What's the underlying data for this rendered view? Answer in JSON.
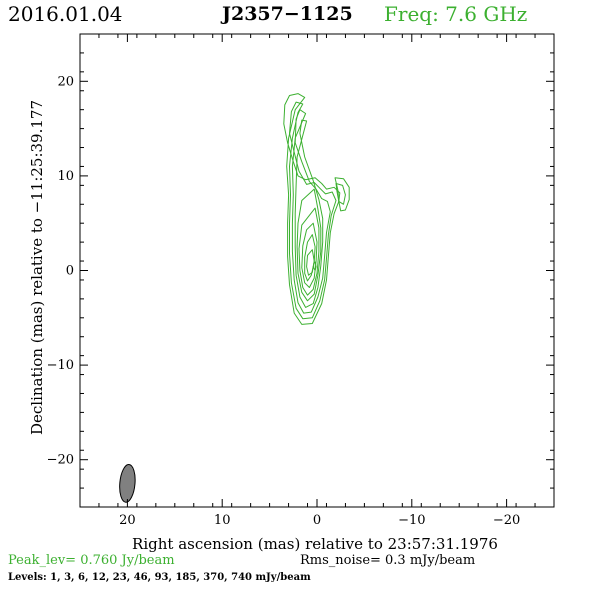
{
  "header": {
    "date": "2016.01.04",
    "source": "J2357−1125",
    "freq": "Freq: 7.6 GHz"
  },
  "colors": {
    "contour": "#3cb030",
    "beam_fill": "#808080",
    "peak_text": "#3cb030",
    "freq_text": "#3cb030"
  },
  "axes": {
    "xlabel": "Right ascension (mas) relative to 23:57:31.1976",
    "ylabel": "Declination (mas) relative to −11:25:39.177",
    "x_range": [
      25,
      -25
    ],
    "y_range": [
      -25,
      25
    ],
    "x_ticks": [
      {
        "value": 20,
        "label": "20"
      },
      {
        "value": 10,
        "label": "10"
      },
      {
        "value": 0,
        "label": "0"
      },
      {
        "value": -10,
        "label": "−10"
      },
      {
        "value": -20,
        "label": "−20"
      }
    ],
    "y_ticks": [
      {
        "value": 20,
        "label": "20"
      },
      {
        "value": 10,
        "label": "10"
      },
      {
        "value": 0,
        "label": "0"
      },
      {
        "value": -10,
        "label": "−10"
      },
      {
        "value": -20,
        "label": "−20"
      }
    ]
  },
  "footer": {
    "peak": "Peak_lev=  0.760 Jy/beam",
    "noise": "Rms_noise=  0.3 mJy/beam",
    "levels": "Levels:   1,   3,   6,  12,  23,  46,  93, 185, 370, 740 mJy/beam"
  },
  "beam": {
    "x": 20,
    "y": -22.5,
    "major": 4.0,
    "minor": 1.6,
    "pa_deg": 5
  },
  "contours": [
    {
      "level": 1,
      "points": [
        [
          1.3,
          18.3
        ],
        [
          2.0,
          18.7
        ],
        [
          2.9,
          18.5
        ],
        [
          3.4,
          17.5
        ],
        [
          3.5,
          15.5
        ],
        [
          3.1,
          13.5
        ],
        [
          2.5,
          11.5
        ],
        [
          2.0,
          10.0
        ],
        [
          1.2,
          9.6
        ],
        [
          0.2,
          9.8
        ],
        [
          -0.5,
          9.2
        ],
        [
          -1.0,
          8.6
        ],
        [
          -1.8,
          8.8
        ],
        [
          -2.4,
          8.2
        ],
        [
          -2.3,
          7.3
        ],
        [
          -1.8,
          6.0
        ],
        [
          -1.4,
          4.0
        ],
        [
          -1.2,
          1.5
        ],
        [
          -1.0,
          -1.0
        ],
        [
          -0.5,
          -3.5
        ],
        [
          0.5,
          -5.6
        ],
        [
          1.6,
          -5.7
        ],
        [
          2.4,
          -4.5
        ],
        [
          2.9,
          -1.5
        ],
        [
          3.1,
          1.5
        ],
        [
          3.1,
          5.0
        ],
        [
          3.0,
          8.0
        ],
        [
          3.2,
          11.0
        ],
        [
          3.0,
          14.0
        ],
        [
          2.3,
          17.0
        ],
        [
          1.3,
          18.3
        ]
      ]
    },
    {
      "level": 3,
      "points": [
        [
          1.5,
          17.6
        ],
        [
          2.2,
          17.8
        ],
        [
          2.7,
          16.8
        ],
        [
          2.9,
          14.5
        ],
        [
          2.4,
          12.5
        ],
        [
          1.9,
          10.5
        ],
        [
          1.1,
          9.1
        ],
        [
          0.3,
          9.3
        ],
        [
          -0.3,
          8.7
        ],
        [
          -0.9,
          8.1
        ],
        [
          -1.6,
          8.3
        ],
        [
          -2.0,
          7.4
        ],
        [
          -1.5,
          5.8
        ],
        [
          -1.2,
          3.8
        ],
        [
          -1.0,
          1.3
        ],
        [
          -0.8,
          -1.0
        ],
        [
          -0.3,
          -3.2
        ],
        [
          0.5,
          -5.0
        ],
        [
          1.5,
          -5.1
        ],
        [
          2.2,
          -4.0
        ],
        [
          2.7,
          -1.3
        ],
        [
          2.9,
          1.8
        ],
        [
          2.9,
          5.0
        ],
        [
          2.8,
          8.0
        ],
        [
          2.9,
          11.0
        ],
        [
          2.6,
          14.0
        ],
        [
          2.0,
          16.7
        ],
        [
          1.5,
          17.6
        ]
      ]
    },
    {
      "level": 6,
      "points": [
        [
          1.2,
          16.6
        ],
        [
          1.8,
          17.0
        ],
        [
          2.2,
          16.0
        ],
        [
          2.3,
          13.5
        ],
        [
          1.6,
          11.5
        ],
        [
          0.8,
          9.4
        ],
        [
          0.1,
          8.6
        ],
        [
          -0.5,
          7.6
        ],
        [
          -1.1,
          7.3
        ],
        [
          -1.4,
          6.2
        ],
        [
          -1.0,
          4.0
        ],
        [
          -0.8,
          1.5
        ],
        [
          -0.6,
          -0.8
        ],
        [
          -0.1,
          -2.8
        ],
        [
          0.6,
          -4.4
        ],
        [
          1.4,
          -4.5
        ],
        [
          2.0,
          -3.4
        ],
        [
          2.4,
          -1.0
        ],
        [
          2.6,
          2.0
        ],
        [
          2.6,
          5.0
        ],
        [
          2.5,
          8.0
        ],
        [
          2.6,
          11.0
        ],
        [
          2.3,
          14.0
        ],
        [
          1.2,
          16.6
        ]
      ]
    },
    {
      "level": 12,
      "points": [
        [
          1.1,
          15.8
        ],
        [
          1.6,
          15.9
        ],
        [
          1.8,
          14.5
        ],
        [
          1.3,
          12.0
        ],
        [
          0.4,
          9.5
        ],
        [
          -0.2,
          7.5
        ],
        [
          -0.6,
          5.5
        ],
        [
          -0.6,
          3.0
        ],
        [
          -0.4,
          0.5
        ],
        [
          -0.1,
          -1.8
        ],
        [
          0.4,
          -3.5
        ],
        [
          1.2,
          -3.9
        ],
        [
          1.8,
          -2.8
        ],
        [
          2.2,
          -0.5
        ],
        [
          2.3,
          2.5
        ],
        [
          2.3,
          6.0
        ],
        [
          2.2,
          9.0
        ],
        [
          2.1,
          12.0
        ],
        [
          1.1,
          15.8
        ]
      ]
    },
    {
      "level": 23,
      "points": [
        [
          0.3,
          8.6
        ],
        [
          -0.1,
          6.5
        ],
        [
          -0.4,
          4.5
        ],
        [
          -0.4,
          2.0
        ],
        [
          -0.1,
          -0.5
        ],
        [
          0.3,
          -2.5
        ],
        [
          1.0,
          -3.2
        ],
        [
          1.6,
          -2.3
        ],
        [
          2.0,
          -0.3
        ],
        [
          2.1,
          2.5
        ],
        [
          2.0,
          5.0
        ],
        [
          1.6,
          7.4
        ],
        [
          0.3,
          8.6
        ]
      ]
    },
    {
      "level": 46,
      "points": [
        [
          0.2,
          6.6
        ],
        [
          -0.2,
          4.5
        ],
        [
          -0.2,
          2.0
        ],
        [
          0.0,
          -0.3
        ],
        [
          0.4,
          -2.0
        ],
        [
          1.0,
          -2.6
        ],
        [
          1.5,
          -1.8
        ],
        [
          1.8,
          0.0
        ],
        [
          1.9,
          2.3
        ],
        [
          1.6,
          4.8
        ],
        [
          0.2,
          6.6
        ]
      ]
    },
    {
      "level": 93,
      "points": [
        [
          0.4,
          5.0
        ],
        [
          0.0,
          3.0
        ],
        [
          0.1,
          1.0
        ],
        [
          0.3,
          -0.8
        ],
        [
          0.8,
          -1.8
        ],
        [
          1.3,
          -1.3
        ],
        [
          1.6,
          0.3
        ],
        [
          1.5,
          2.6
        ],
        [
          1.1,
          4.3
        ],
        [
          0.4,
          5.0
        ]
      ]
    },
    {
      "level": 185,
      "points": [
        [
          0.5,
          3.8
        ],
        [
          0.2,
          2.5
        ],
        [
          0.3,
          0.9
        ],
        [
          0.6,
          -0.5
        ],
        [
          1.0,
          -1.1
        ],
        [
          1.3,
          -0.3
        ],
        [
          1.3,
          1.4
        ],
        [
          1.0,
          3.0
        ],
        [
          0.5,
          3.8
        ]
      ]
    },
    {
      "level": 370,
      "points": [
        [
          0.5,
          2.2
        ],
        [
          0.3,
          1.0
        ],
        [
          0.5,
          -0.2
        ],
        [
          0.9,
          -0.5
        ],
        [
          1.1,
          0.4
        ],
        [
          1.0,
          1.6
        ],
        [
          0.5,
          2.2
        ]
      ]
    },
    {
      "level": 740,
      "points": [
        [
          0.2,
          0.9
        ],
        [
          0.1,
          0.4
        ],
        [
          0.2,
          0.0
        ],
        [
          0.35,
          0.3
        ],
        [
          0.35,
          0.7
        ],
        [
          0.2,
          0.9
        ]
      ]
    },
    {
      "level": 1,
      "points": [
        [
          -1.9,
          9.8
        ],
        [
          -2.8,
          9.7
        ],
        [
          -3.4,
          8.8
        ],
        [
          -3.4,
          7.5
        ],
        [
          -3.0,
          6.4
        ],
        [
          -2.5,
          6.3
        ],
        [
          -2.3,
          7.3
        ],
        [
          -2.2,
          8.5
        ],
        [
          -1.9,
          9.8
        ]
      ]
    },
    {
      "level": 3,
      "points": [
        [
          -2.0,
          9.2
        ],
        [
          -2.7,
          9.0
        ],
        [
          -3.0,
          8.0
        ],
        [
          -2.8,
          7.0
        ],
        [
          -2.3,
          7.3
        ],
        [
          -2.1,
          8.4
        ],
        [
          -2.0,
          9.2
        ]
      ]
    }
  ]
}
